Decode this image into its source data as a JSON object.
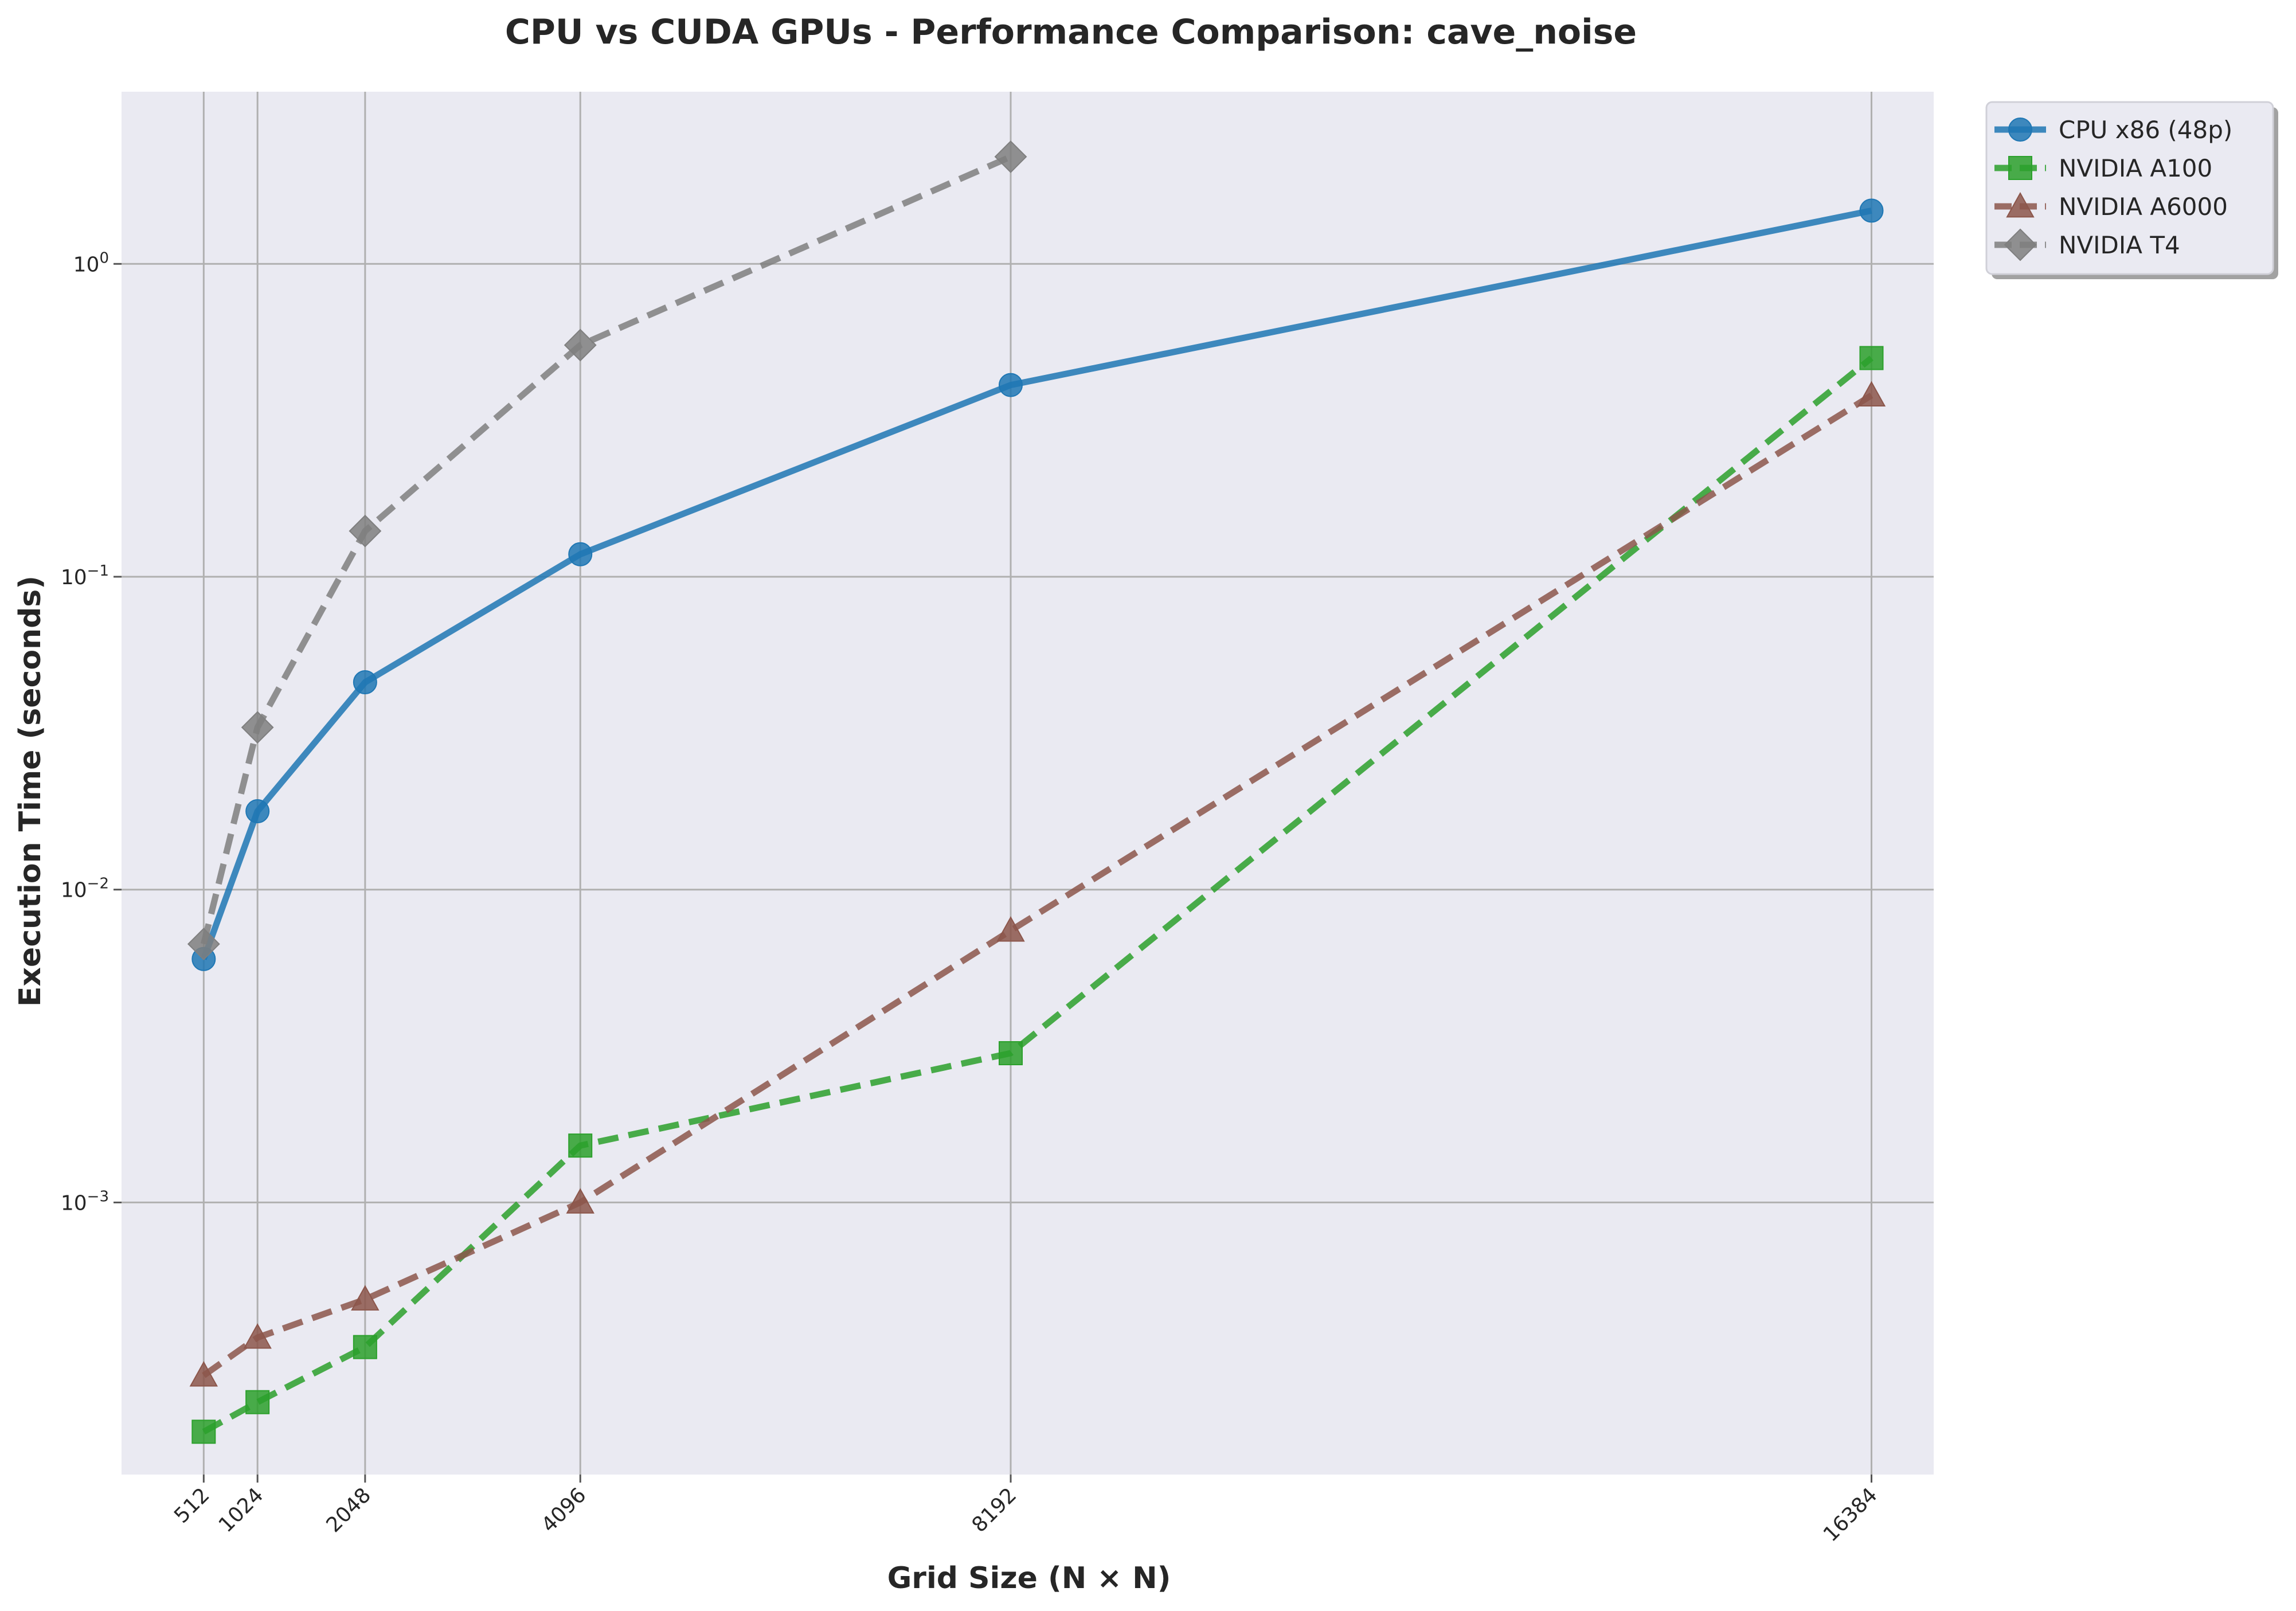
{
  "chart_data": {
    "type": "line",
    "title": "CPU vs CUDA GPUs - Performance Comparison: cave_noise",
    "xlabel": "Grid Size (N × N)",
    "ylabel": "Execution Time (seconds)",
    "x": [
      512,
      1024,
      2048,
      4096,
      8192,
      16384
    ],
    "x_tick_labels": [
      "512",
      "1024",
      "2048",
      "4096",
      "8192",
      "16384"
    ],
    "y_scale": "log",
    "y_ticks": [
      {
        "value": 0.001,
        "mantissa": "10",
        "exponent": "−3"
      },
      {
        "value": 0.01,
        "mantissa": "10",
        "exponent": "−2"
      },
      {
        "value": 0.1,
        "mantissa": "10",
        "exponent": "−1"
      },
      {
        "value": 1,
        "mantissa": "10",
        "exponent": "0"
      }
    ],
    "xlim": [
      -270,
      16976
    ],
    "ylim": [
      0.000135,
      3.55
    ],
    "grid": true,
    "legend_position": "outside-top-right",
    "series": [
      {
        "name": "CPU x86 (48p)",
        "color": "#1f77b4",
        "marker": "circle",
        "dash": "solid",
        "values": [
          0.006,
          0.0178,
          0.046,
          0.118,
          0.41,
          1.48
        ]
      },
      {
        "name": "NVIDIA A100",
        "color": "#2ca02c",
        "marker": "square",
        "dash": "dashed",
        "values": [
          0.000185,
          0.00023,
          0.000345,
          0.00152,
          0.003,
          0.5
        ]
      },
      {
        "name": "NVIDIA A6000",
        "color": "#8c564b",
        "marker": "triangle",
        "dash": "dashed",
        "values": [
          0.00028,
          0.00037,
          0.00049,
          0.001,
          0.0074,
          0.38
        ]
      },
      {
        "name": "NVIDIA T4",
        "color": "#7f7f7f",
        "marker": "diamond",
        "dash": "dashed",
        "values": [
          0.0067,
          0.033,
          0.14,
          0.55,
          2.2,
          null
        ]
      }
    ]
  }
}
